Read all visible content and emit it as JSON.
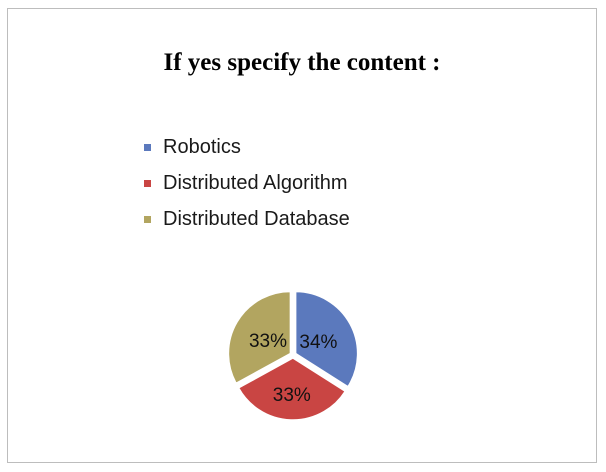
{
  "slide": {
    "title": "If yes specify the content :"
  },
  "chart_data": {
    "type": "pie",
    "title": "",
    "legend_position": "top",
    "categories": [
      "Robotics",
      "Distributed Algorithm",
      "Distributed Database"
    ],
    "values": [
      34,
      33,
      33
    ],
    "data_labels": [
      "34%",
      "33%",
      "33%"
    ],
    "colors": [
      "#5b79bd",
      "#c94543",
      "#b2a560"
    ],
    "exploded": true
  }
}
